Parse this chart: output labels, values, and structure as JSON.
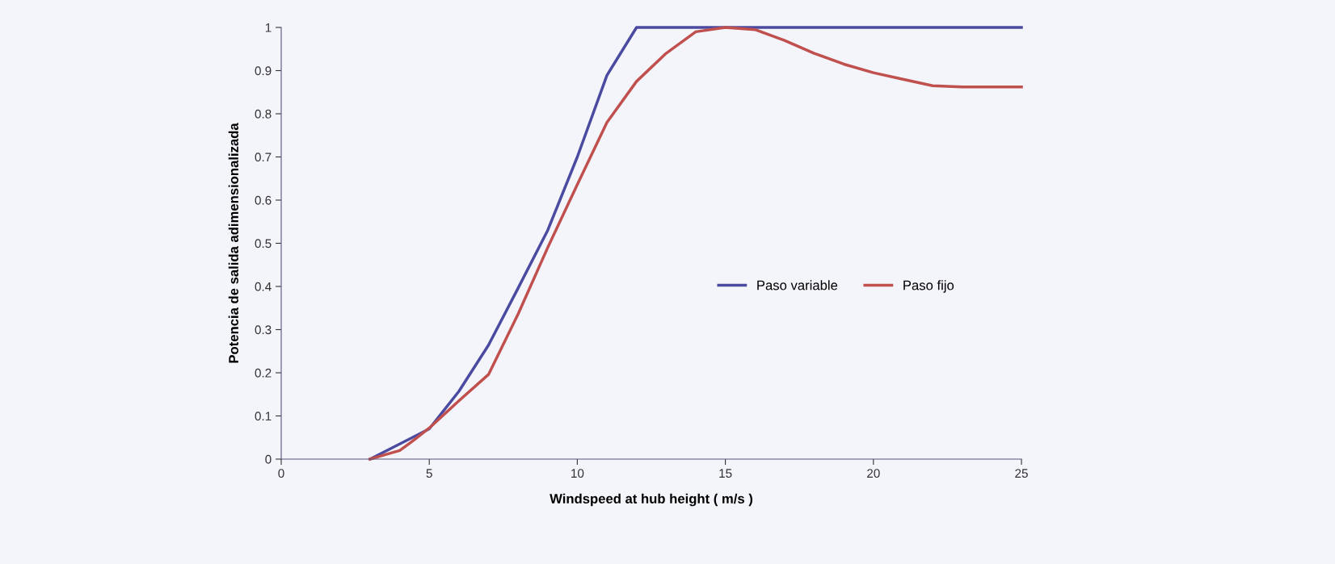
{
  "chart_data": {
    "type": "line",
    "xlabel": "Windspeed at hub height ( m/s )",
    "ylabel": "Potencia de salida adimensionalizada",
    "xlim": [
      0,
      25
    ],
    "xticks": [
      0,
      5,
      10,
      15,
      20,
      25
    ],
    "ylim": [
      0,
      1
    ],
    "yticks": [
      0,
      {
        "value": 0.1,
        "label": "0.1"
      },
      {
        "value": 0.2,
        "label": "0.2"
      },
      {
        "value": 0.3,
        "label": "0.3"
      },
      {
        "value": 0.4,
        "label": "0.4"
      },
      {
        "value": 0.5,
        "label": "0.5"
      },
      {
        "value": 0.6,
        "label": "0.6"
      },
      {
        "value": 0.7,
        "label": "0.7"
      },
      {
        "value": 0.8,
        "label": "0.8"
      },
      {
        "value": 0.9,
        "label": "0.9"
      },
      1
    ],
    "grid": false,
    "legend": "center",
    "marker": "none",
    "line_style": "solid",
    "series": [
      {
        "name": "Paso variable",
        "color": "#4a4aa0",
        "x": [
          3,
          5,
          6,
          7,
          8,
          9,
          10,
          11,
          12,
          25
        ],
        "values": [
          0,
          0.07,
          0.157,
          0.264,
          0.396,
          0.53,
          0.7,
          0.889,
          1,
          1
        ]
      },
      {
        "name": "Paso fijo",
        "color": "#c0504d",
        "x": [
          3,
          3.5,
          4,
          4.5,
          5,
          6,
          7,
          8,
          9,
          10,
          11,
          12,
          13,
          14,
          15,
          16,
          17,
          18,
          19,
          20,
          21,
          22,
          23,
          24,
          25
        ],
        "values": [
          0,
          0.01,
          0.02,
          0.045,
          0.072,
          0.135,
          0.196,
          0.336,
          0.49,
          0.636,
          0.78,
          0.875,
          0.94,
          0.99,
          1,
          0.995,
          0.97,
          0.94,
          0.915,
          0.895,
          0.88,
          0.865,
          0.862,
          0.862,
          0.862
        ]
      }
    ]
  }
}
